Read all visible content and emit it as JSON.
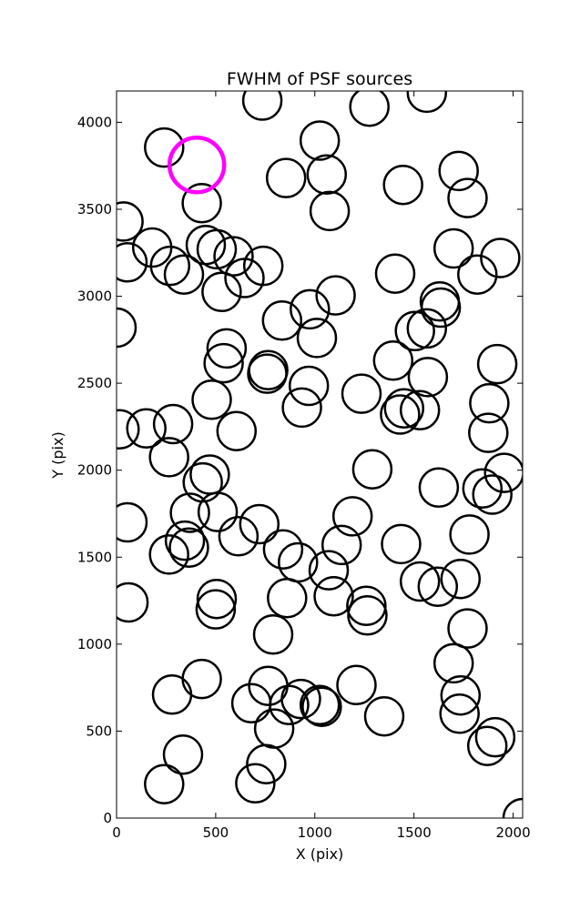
{
  "chart_data": {
    "type": "scatter",
    "title": "FWHM of PSF sources",
    "xlabel": "X (pix)",
    "ylabel": "Y (pix)",
    "xlim": [
      0,
      2048
    ],
    "ylim": [
      0,
      4180
    ],
    "xticks": [
      0,
      500,
      1000,
      1500,
      2000
    ],
    "yticks": [
      0,
      500,
      1000,
      1500,
      2000,
      2500,
      3000,
      3500,
      4000
    ],
    "grid": false,
    "marker": "circle",
    "colors": {
      "normal": "#000000",
      "highlight": "#ff00ff"
    },
    "highlight": [
      {
        "x": 405,
        "y": 3755
      }
    ],
    "points": [
      {
        "x": 240,
        "y": 3855
      },
      {
        "x": 735,
        "y": 4125
      },
      {
        "x": 1565,
        "y": 4170
      },
      {
        "x": 1275,
        "y": 4090
      },
      {
        "x": 1025,
        "y": 3895
      },
      {
        "x": 1060,
        "y": 3700
      },
      {
        "x": 855,
        "y": 3680
      },
      {
        "x": 1445,
        "y": 3640
      },
      {
        "x": 1725,
        "y": 3720
      },
      {
        "x": 1770,
        "y": 3565
      },
      {
        "x": 430,
        "y": 3535
      },
      {
        "x": 1075,
        "y": 3490
      },
      {
        "x": 35,
        "y": 3430
      },
      {
        "x": 180,
        "y": 3280
      },
      {
        "x": 450,
        "y": 3295
      },
      {
        "x": 505,
        "y": 3270
      },
      {
        "x": 590,
        "y": 3230
      },
      {
        "x": 55,
        "y": 3195
      },
      {
        "x": 270,
        "y": 3175
      },
      {
        "x": 740,
        "y": 3175
      },
      {
        "x": 340,
        "y": 3125
      },
      {
        "x": 645,
        "y": 3105
      },
      {
        "x": 1405,
        "y": 3130
      },
      {
        "x": 1700,
        "y": 3275
      },
      {
        "x": 1935,
        "y": 3220
      },
      {
        "x": 1820,
        "y": 3125
      },
      {
        "x": 530,
        "y": 3025
      },
      {
        "x": 1105,
        "y": 3005
      },
      {
        "x": 1630,
        "y": 2970
      },
      {
        "x": 1635,
        "y": 2935
      },
      {
        "x": 975,
        "y": 2925
      },
      {
        "x": 835,
        "y": 2860
      },
      {
        "x": 0,
        "y": 2820
      },
      {
        "x": 1505,
        "y": 2800
      },
      {
        "x": 1565,
        "y": 2815
      },
      {
        "x": 1010,
        "y": 2760
      },
      {
        "x": 555,
        "y": 2700
      },
      {
        "x": 540,
        "y": 2615
      },
      {
        "x": 1395,
        "y": 2630
      },
      {
        "x": 1920,
        "y": 2610
      },
      {
        "x": 765,
        "y": 2575
      },
      {
        "x": 760,
        "y": 2555
      },
      {
        "x": 970,
        "y": 2485
      },
      {
        "x": 1570,
        "y": 2535
      },
      {
        "x": 1235,
        "y": 2440
      },
      {
        "x": 480,
        "y": 2405
      },
      {
        "x": 935,
        "y": 2360
      },
      {
        "x": 1450,
        "y": 2355
      },
      {
        "x": 1530,
        "y": 2345
      },
      {
        "x": 1430,
        "y": 2320
      },
      {
        "x": 1880,
        "y": 2385
      },
      {
        "x": 285,
        "y": 2265
      },
      {
        "x": 15,
        "y": 2235
      },
      {
        "x": 150,
        "y": 2240
      },
      {
        "x": 605,
        "y": 2225
      },
      {
        "x": 1875,
        "y": 2215
      },
      {
        "x": 265,
        "y": 2075
      },
      {
        "x": 470,
        "y": 1975
      },
      {
        "x": 435,
        "y": 1930
      },
      {
        "x": 1290,
        "y": 2005
      },
      {
        "x": 1625,
        "y": 1900
      },
      {
        "x": 1845,
        "y": 1895
      },
      {
        "x": 1955,
        "y": 1985
      },
      {
        "x": 1895,
        "y": 1860
      },
      {
        "x": 370,
        "y": 1755
      },
      {
        "x": 510,
        "y": 1760
      },
      {
        "x": 55,
        "y": 1700
      },
      {
        "x": 1190,
        "y": 1735
      },
      {
        "x": 720,
        "y": 1690
      },
      {
        "x": 615,
        "y": 1620
      },
      {
        "x": 1780,
        "y": 1630
      },
      {
        "x": 345,
        "y": 1595
      },
      {
        "x": 365,
        "y": 1555
      },
      {
        "x": 1135,
        "y": 1570
      },
      {
        "x": 1435,
        "y": 1575
      },
      {
        "x": 840,
        "y": 1545
      },
      {
        "x": 265,
        "y": 1515
      },
      {
        "x": 915,
        "y": 1470
      },
      {
        "x": 1070,
        "y": 1425
      },
      {
        "x": 1530,
        "y": 1360
      },
      {
        "x": 1620,
        "y": 1330
      },
      {
        "x": 1735,
        "y": 1375
      },
      {
        "x": 505,
        "y": 1260
      },
      {
        "x": 500,
        "y": 1200
      },
      {
        "x": 860,
        "y": 1265
      },
      {
        "x": 1095,
        "y": 1275
      },
      {
        "x": 60,
        "y": 1240
      },
      {
        "x": 1260,
        "y": 1220
      },
      {
        "x": 1265,
        "y": 1165
      },
      {
        "x": 1770,
        "y": 1090
      },
      {
        "x": 790,
        "y": 1055
      },
      {
        "x": 1700,
        "y": 890
      },
      {
        "x": 430,
        "y": 800
      },
      {
        "x": 765,
        "y": 760
      },
      {
        "x": 1210,
        "y": 765
      },
      {
        "x": 280,
        "y": 710
      },
      {
        "x": 1735,
        "y": 705
      },
      {
        "x": 930,
        "y": 685
      },
      {
        "x": 870,
        "y": 650
      },
      {
        "x": 680,
        "y": 660
      },
      {
        "x": 1025,
        "y": 650
      },
      {
        "x": 1035,
        "y": 640
      },
      {
        "x": 1730,
        "y": 600
      },
      {
        "x": 1350,
        "y": 585
      },
      {
        "x": 795,
        "y": 515
      },
      {
        "x": 1910,
        "y": 465
      },
      {
        "x": 1870,
        "y": 415
      },
      {
        "x": 335,
        "y": 365
      },
      {
        "x": 755,
        "y": 310
      },
      {
        "x": 240,
        "y": 195
      },
      {
        "x": 700,
        "y": 200
      },
      {
        "x": 2048,
        "y": 0
      }
    ]
  }
}
